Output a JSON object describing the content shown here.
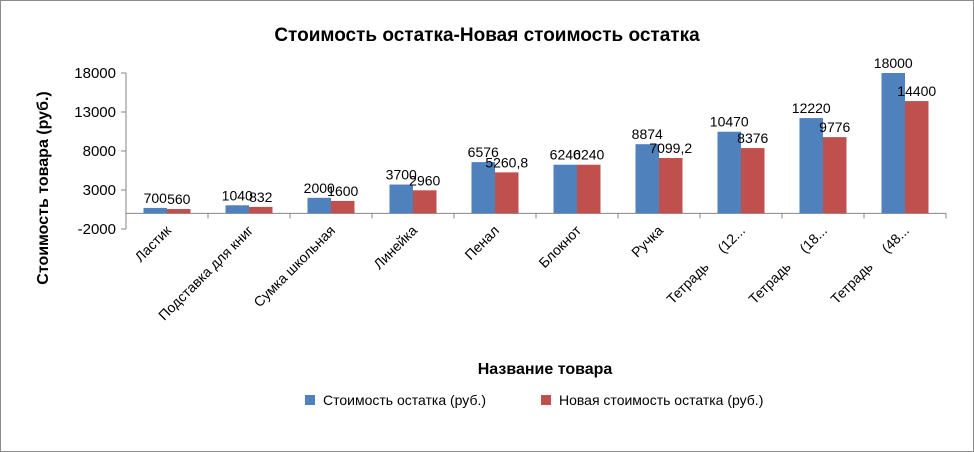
{
  "chart_data": {
    "type": "bar",
    "title": "Стоимость остатка-Новая стоимость остатка",
    "xlabel": "Название товара",
    "ylabel": "Стоимость товара (руб.)",
    "ylim": [
      -2000,
      18000
    ],
    "yticks": [
      18000,
      13000,
      8000,
      3000,
      -2000
    ],
    "grid": false,
    "legend_position": "bottom",
    "categories": [
      "Ластик",
      "Подставка для книг",
      "Сумка школьная",
      "Линейка",
      "Пенал",
      "Блокнот",
      "Ручка",
      "Тетрадь     (12...",
      "Тетрадь     (18...",
      "Тетрадь     (48..."
    ],
    "series": [
      {
        "name": "Стоимость остатка (руб.)",
        "color": "#4f81bd",
        "values": [
          700,
          1040,
          2000,
          3700,
          6576,
          6240,
          8874,
          10470,
          12220,
          18000
        ],
        "labels": [
          "700",
          "1040",
          "2000",
          "3700",
          "6576",
          "6240",
          "8874",
          "10470",
          "12220",
          "18000"
        ]
      },
      {
        "name": "Новая стоимость остатка (руб.)",
        "color": "#c0504d",
        "values": [
          560,
          832,
          1600,
          2960,
          5260.8,
          6240,
          7099.2,
          8376,
          9776,
          14400
        ],
        "labels": [
          "560",
          "832",
          "1600",
          "2960",
          "5260,8",
          "6240",
          "7099,2",
          "8376",
          "9776",
          "14400"
        ]
      }
    ]
  }
}
